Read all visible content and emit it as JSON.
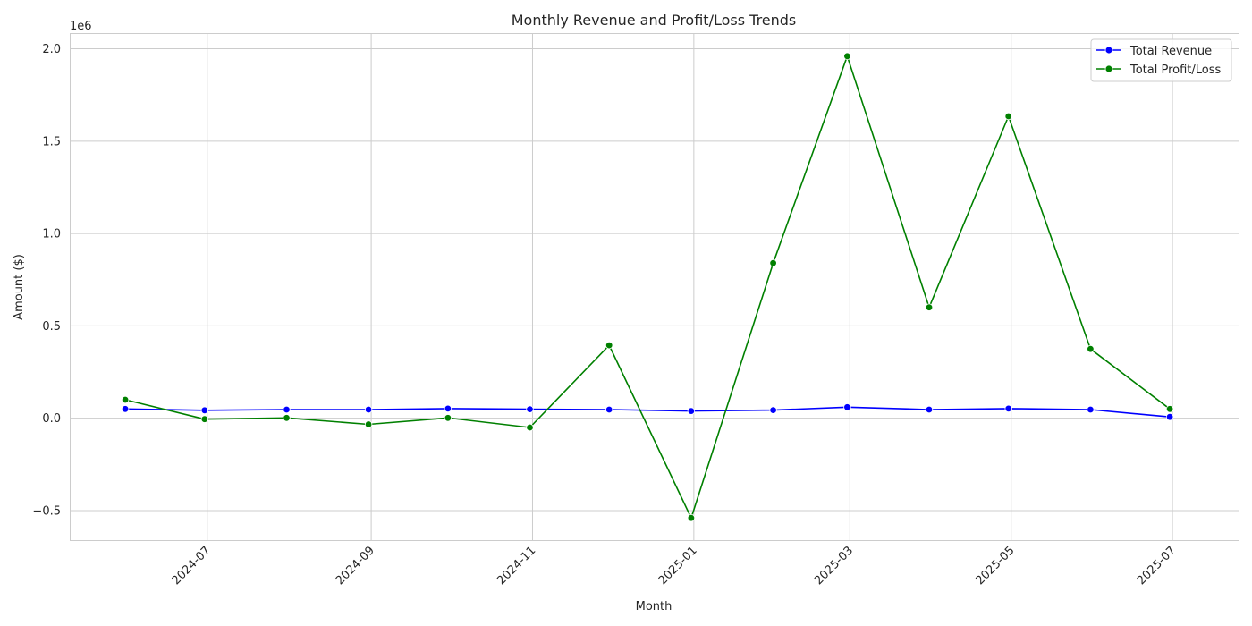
{
  "chart_data": {
    "type": "line",
    "title": "Monthly Revenue and Profit/Loss Trends",
    "xlabel": "Month",
    "ylabel": "Amount ($)",
    "y_offset_label": "1e6",
    "y_scale_factor": 1000000,
    "xlim": [
      "2024-05-10",
      "2025-07-26"
    ],
    "ylim": [
      -660000,
      2085000
    ],
    "x_ticks": [
      "2024-07",
      "2024-09",
      "2024-11",
      "2025-01",
      "2025-03",
      "2025-05",
      "2025-07"
    ],
    "y_ticks": [
      -500000,
      0,
      500000,
      1000000,
      1500000,
      2000000
    ],
    "y_tick_labels": [
      "−0.5",
      "0.0",
      "0.5",
      "1.0",
      "1.5",
      "2.0"
    ],
    "grid": true,
    "legend_position": "top-right",
    "x": [
      "2024-05-31",
      "2024-06-30",
      "2024-07-31",
      "2024-08-31",
      "2024-09-30",
      "2024-10-31",
      "2024-11-30",
      "2024-12-31",
      "2025-01-31",
      "2025-02-28",
      "2025-03-31",
      "2025-04-30",
      "2025-05-31",
      "2025-06-30"
    ],
    "series": [
      {
        "name": "Total Revenue",
        "color": "#0000ff",
        "values": [
          50000,
          43000,
          47000,
          47000,
          52000,
          49000,
          47000,
          39000,
          44000,
          60000,
          47000,
          52000,
          47000,
          7000
        ]
      },
      {
        "name": "Total Profit/Loss",
        "color": "#008000",
        "values": [
          100000,
          -5000,
          2000,
          -33000,
          2000,
          -50000,
          395000,
          -540000,
          840000,
          1960000,
          600000,
          1635000,
          375000,
          50000
        ]
      }
    ]
  }
}
